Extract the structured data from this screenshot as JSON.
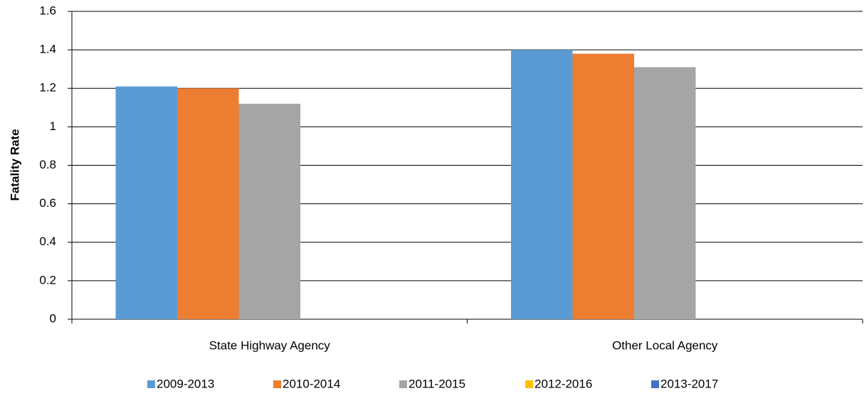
{
  "chart_data": {
    "type": "bar",
    "y_label": "Fatality Rate",
    "categories": [
      "State Highway Agency",
      "Other Local Agency"
    ],
    "series": [
      {
        "name": "2009-2013",
        "color": "#5b9bd5",
        "values": [
          1.21,
          1.4
        ]
      },
      {
        "name": "2010-2014",
        "color": "#ed7d31",
        "values": [
          1.2,
          1.38
        ]
      },
      {
        "name": "2011-2015",
        "color": "#a5a5a5",
        "values": [
          1.12,
          1.31
        ]
      },
      {
        "name": "2012-2016",
        "color": "#ffc000",
        "values": [
          null,
          null
        ]
      },
      {
        "name": "2013-2017",
        "color": "#4472c4",
        "values": [
          null,
          null
        ]
      }
    ],
    "ylim": [
      0,
      1.6
    ],
    "yticks": [
      0,
      0.2,
      0.4,
      0.6,
      0.8,
      1,
      1.2,
      1.4,
      1.6
    ],
    "grid": true,
    "legend": "bottom"
  }
}
